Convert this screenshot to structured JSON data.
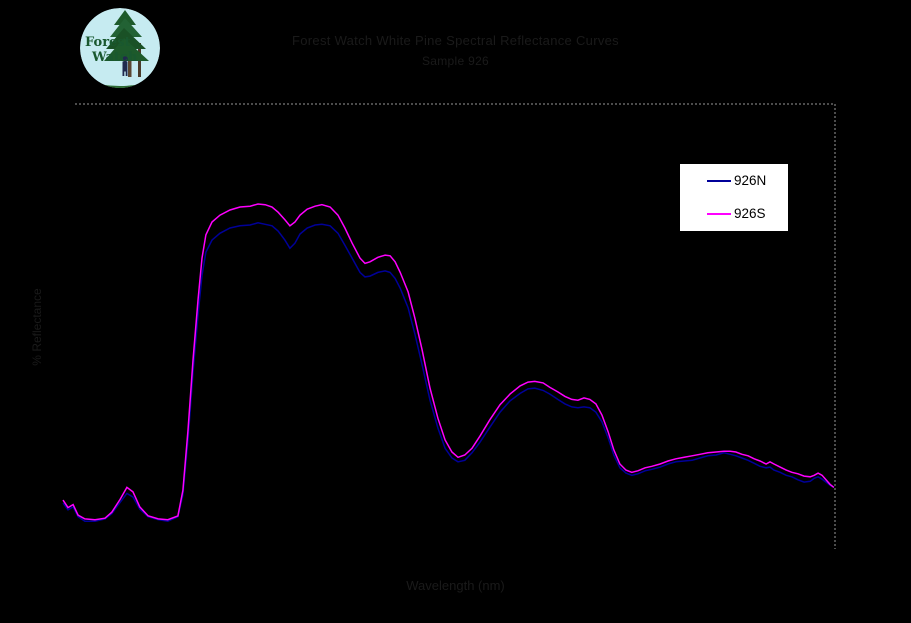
{
  "logo": {
    "line1": "Forest",
    "line2": "Watch"
  },
  "title": {
    "line1": "Forest Watch White Pine Spectral Reflectance Curves",
    "line2": "Sample 926"
  },
  "axes": {
    "y_label": "% Reflectance",
    "x_label": "Wavelength (nm)"
  },
  "legend": {
    "position": "top-right",
    "entries": [
      {
        "label": "926N",
        "color": "#000099"
      },
      {
        "label": "926S",
        "color": "#ff00ff"
      }
    ]
  },
  "colors": {
    "background": "#000000",
    "plot_border": "#999999",
    "legend_background": "#ffffff",
    "legend_border": "#000000",
    "faint_text": "#1a1a1a"
  },
  "chart_data": {
    "type": "line",
    "title": "Forest Watch White Pine Spectral Reflectance Curves",
    "subtitle": "Sample 926",
    "xlabel": "Wavelength (nm)",
    "ylabel": "% Reflectance",
    "xlim": [
      350,
      2500
    ],
    "ylim": [
      0,
      60
    ],
    "grid": false,
    "legend_position": "top-right",
    "series": [
      {
        "name": "926N",
        "color": "#000099",
        "points": [
          [
            350,
            6.9
          ],
          [
            364,
            6.0
          ],
          [
            378,
            6.4
          ],
          [
            392,
            5.1
          ],
          [
            411,
            4.5
          ],
          [
            439,
            4.5
          ],
          [
            467,
            4.8
          ],
          [
            486,
            5.5
          ],
          [
            509,
            7.0
          ],
          [
            528,
            8.2
          ],
          [
            545,
            7.7
          ],
          [
            564,
            6.1
          ],
          [
            587,
            5.1
          ],
          [
            615,
            4.7
          ],
          [
            642,
            4.5
          ],
          [
            670,
            5.1
          ],
          [
            684,
            8.0
          ],
          [
            698,
            15.3
          ],
          [
            712,
            24.3
          ],
          [
            726,
            31.9
          ],
          [
            737,
            37.2
          ],
          [
            748,
            40.3
          ],
          [
            765,
            41.9
          ],
          [
            787,
            42.8
          ],
          [
            815,
            43.5
          ],
          [
            843,
            43.8
          ],
          [
            871,
            43.9
          ],
          [
            893,
            44.2
          ],
          [
            913,
            44.0
          ],
          [
            932,
            43.8
          ],
          [
            949,
            43.1
          ],
          [
            968,
            41.9
          ],
          [
            982,
            40.8
          ],
          [
            996,
            41.5
          ],
          [
            1010,
            42.7
          ],
          [
            1030,
            43.5
          ],
          [
            1052,
            43.9
          ],
          [
            1071,
            44.0
          ],
          [
            1094,
            43.8
          ],
          [
            1116,
            42.8
          ],
          [
            1135,
            41.2
          ],
          [
            1155,
            39.5
          ],
          [
            1177,
            37.6
          ],
          [
            1191,
            37.0
          ],
          [
            1205,
            37.1
          ],
          [
            1227,
            37.6
          ],
          [
            1247,
            37.8
          ],
          [
            1261,
            37.6
          ],
          [
            1275,
            36.8
          ],
          [
            1289,
            35.5
          ],
          [
            1311,
            32.9
          ],
          [
            1330,
            29.4
          ],
          [
            1350,
            25.3
          ],
          [
            1372,
            20.6
          ],
          [
            1394,
            16.9
          ],
          [
            1414,
            14.2
          ],
          [
            1433,
            12.9
          ],
          [
            1450,
            12.4
          ],
          [
            1469,
            12.6
          ],
          [
            1489,
            13.6
          ],
          [
            1511,
            15.0
          ],
          [
            1539,
            17.0
          ],
          [
            1567,
            19.0
          ],
          [
            1595,
            20.5
          ],
          [
            1623,
            21.5
          ],
          [
            1645,
            22.1
          ],
          [
            1664,
            22.2
          ],
          [
            1687,
            21.9
          ],
          [
            1706,
            21.4
          ],
          [
            1728,
            20.7
          ],
          [
            1748,
            20.1
          ],
          [
            1767,
            19.7
          ],
          [
            1784,
            19.6
          ],
          [
            1801,
            19.7
          ],
          [
            1817,
            19.6
          ],
          [
            1834,
            19.0
          ],
          [
            1851,
            17.7
          ],
          [
            1868,
            15.6
          ],
          [
            1884,
            13.3
          ],
          [
            1901,
            11.6
          ],
          [
            1918,
            10.9
          ],
          [
            1934,
            10.6
          ],
          [
            1951,
            10.8
          ],
          [
            1971,
            11.2
          ],
          [
            1990,
            11.4
          ],
          [
            2013,
            11.7
          ],
          [
            2035,
            12.1
          ],
          [
            2057,
            12.4
          ],
          [
            2080,
            12.5
          ],
          [
            2102,
            12.6
          ],
          [
            2124,
            12.9
          ],
          [
            2146,
            13.2
          ],
          [
            2169,
            13.3
          ],
          [
            2191,
            13.6
          ],
          [
            2208,
            13.4
          ],
          [
            2224,
            13.2
          ],
          [
            2241,
            12.9
          ],
          [
            2258,
            12.6
          ],
          [
            2275,
            12.2
          ],
          [
            2291,
            11.8
          ],
          [
            2308,
            11.6
          ],
          [
            2319,
            11.7
          ],
          [
            2330,
            11.3
          ],
          [
            2347,
            11.0
          ],
          [
            2364,
            10.6
          ],
          [
            2380,
            10.4
          ],
          [
            2397,
            10.0
          ],
          [
            2414,
            9.7
          ],
          [
            2431,
            9.8
          ],
          [
            2442,
            10.2
          ],
          [
            2453,
            10.4
          ],
          [
            2464,
            10.1
          ],
          [
            2475,
            9.7
          ],
          [
            2486,
            9.3
          ],
          [
            2497,
            9.0
          ]
        ]
      },
      {
        "name": "926S",
        "color": "#ff00ff",
        "points": [
          [
            350,
            7.3
          ],
          [
            364,
            6.3
          ],
          [
            378,
            6.7
          ],
          [
            392,
            5.3
          ],
          [
            411,
            4.8
          ],
          [
            439,
            4.7
          ],
          [
            467,
            4.9
          ],
          [
            486,
            5.7
          ],
          [
            509,
            7.4
          ],
          [
            528,
            9.0
          ],
          [
            545,
            8.4
          ],
          [
            564,
            6.4
          ],
          [
            587,
            5.2
          ],
          [
            615,
            4.8
          ],
          [
            642,
            4.7
          ],
          [
            670,
            5.2
          ],
          [
            684,
            8.6
          ],
          [
            698,
            16.6
          ],
          [
            712,
            25.9
          ],
          [
            726,
            33.9
          ],
          [
            737,
            39.5
          ],
          [
            748,
            42.6
          ],
          [
            765,
            44.3
          ],
          [
            787,
            45.2
          ],
          [
            815,
            45.9
          ],
          [
            843,
            46.3
          ],
          [
            871,
            46.4
          ],
          [
            893,
            46.7
          ],
          [
            913,
            46.6
          ],
          [
            932,
            46.3
          ],
          [
            949,
            45.6
          ],
          [
            968,
            44.6
          ],
          [
            982,
            43.8
          ],
          [
            996,
            44.3
          ],
          [
            1010,
            45.2
          ],
          [
            1030,
            46.0
          ],
          [
            1052,
            46.4
          ],
          [
            1071,
            46.6
          ],
          [
            1094,
            46.3
          ],
          [
            1116,
            45.2
          ],
          [
            1135,
            43.5
          ],
          [
            1155,
            41.5
          ],
          [
            1177,
            39.5
          ],
          [
            1191,
            38.8
          ],
          [
            1205,
            39.0
          ],
          [
            1227,
            39.6
          ],
          [
            1247,
            39.9
          ],
          [
            1261,
            39.8
          ],
          [
            1275,
            39.0
          ],
          [
            1289,
            37.6
          ],
          [
            1311,
            35.0
          ],
          [
            1330,
            31.5
          ],
          [
            1350,
            27.3
          ],
          [
            1372,
            22.2
          ],
          [
            1394,
            18.2
          ],
          [
            1414,
            15.3
          ],
          [
            1433,
            13.7
          ],
          [
            1450,
            13.0
          ],
          [
            1469,
            13.3
          ],
          [
            1489,
            14.2
          ],
          [
            1511,
            15.8
          ],
          [
            1539,
            18.0
          ],
          [
            1567,
            20.0
          ],
          [
            1595,
            21.4
          ],
          [
            1623,
            22.5
          ],
          [
            1645,
            23.0
          ],
          [
            1664,
            23.1
          ],
          [
            1687,
            22.9
          ],
          [
            1706,
            22.3
          ],
          [
            1728,
            21.7
          ],
          [
            1748,
            21.1
          ],
          [
            1767,
            20.7
          ],
          [
            1784,
            20.6
          ],
          [
            1801,
            20.9
          ],
          [
            1817,
            20.7
          ],
          [
            1834,
            20.1
          ],
          [
            1851,
            18.6
          ],
          [
            1868,
            16.4
          ],
          [
            1884,
            14.0
          ],
          [
            1901,
            12.1
          ],
          [
            1918,
            11.3
          ],
          [
            1934,
            11.0
          ],
          [
            1951,
            11.2
          ],
          [
            1971,
            11.6
          ],
          [
            1990,
            11.8
          ],
          [
            2013,
            12.1
          ],
          [
            2035,
            12.5
          ],
          [
            2057,
            12.8
          ],
          [
            2080,
            13.0
          ],
          [
            2102,
            13.2
          ],
          [
            2124,
            13.4
          ],
          [
            2146,
            13.6
          ],
          [
            2169,
            13.7
          ],
          [
            2191,
            13.8
          ],
          [
            2208,
            13.8
          ],
          [
            2224,
            13.7
          ],
          [
            2241,
            13.4
          ],
          [
            2258,
            13.2
          ],
          [
            2275,
            12.8
          ],
          [
            2291,
            12.5
          ],
          [
            2308,
            12.1
          ],
          [
            2319,
            12.4
          ],
          [
            2330,
            12.1
          ],
          [
            2347,
            11.7
          ],
          [
            2364,
            11.3
          ],
          [
            2380,
            11.0
          ],
          [
            2397,
            10.8
          ],
          [
            2414,
            10.5
          ],
          [
            2431,
            10.4
          ],
          [
            2442,
            10.6
          ],
          [
            2453,
            10.9
          ],
          [
            2464,
            10.6
          ],
          [
            2475,
            10.0
          ],
          [
            2486,
            9.4
          ],
          [
            2497,
            9.0
          ]
        ]
      }
    ]
  }
}
